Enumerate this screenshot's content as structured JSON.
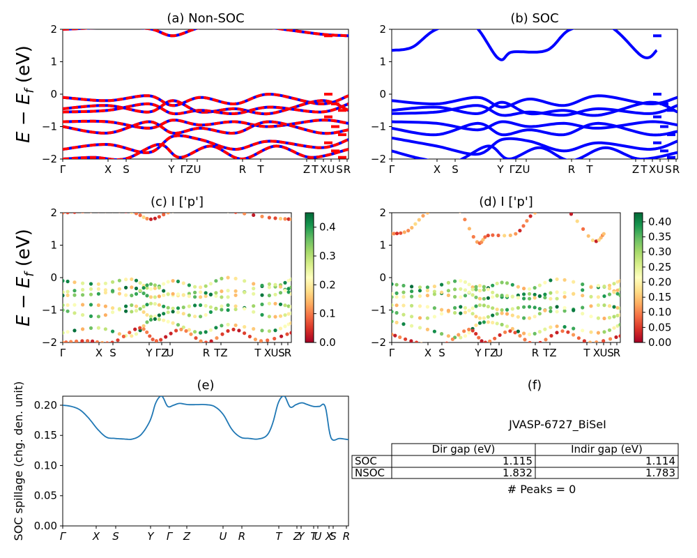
{
  "chart_data": [
    {
      "type": "line",
      "panel": "a",
      "title": "(a) Non-SOC",
      "ylabel": "E - E_f (eV)",
      "ylim": [
        -2,
        2
      ],
      "yticks": [
        "2",
        "1",
        "0",
        "−1",
        "−2"
      ],
      "xtick_labels": [
        "Γ",
        "X",
        "S",
        "Y",
        "ΓZ",
        "U",
        "R",
        "T",
        "Z",
        "T",
        "X",
        "U",
        "S",
        "R"
      ],
      "series_colors": [
        "#0000ff",
        "#ff0000"
      ],
      "style": "blue bands overlaid with red dashed bands",
      "bands": [
        {
          "name": "b1",
          "points": [
            [
              0,
              -0.1
            ],
            [
              1.3,
              -0.2
            ],
            [
              2.5,
              -0.05
            ],
            [
              3.2,
              -0.35
            ],
            [
              4.0,
              -0.1
            ],
            [
              5.0,
              -0.3
            ],
            [
              6.0,
              0.0
            ],
            [
              7.5,
              -0.3
            ],
            [
              8.3,
              -0.05
            ]
          ]
        },
        {
          "name": "b2",
          "points": [
            [
              0,
              -0.45
            ],
            [
              1.3,
              -0.35
            ],
            [
              2.5,
              -0.55
            ],
            [
              3.2,
              -0.2
            ],
            [
              4.0,
              -0.55
            ],
            [
              5.0,
              -0.45
            ],
            [
              6.0,
              -0.6
            ],
            [
              7.5,
              -0.2
            ],
            [
              8.3,
              -0.5
            ]
          ]
        },
        {
          "name": "b3",
          "points": [
            [
              0,
              -0.55
            ],
            [
              1.3,
              -0.5
            ],
            [
              2.5,
              -0.3
            ],
            [
              3.2,
              -0.6
            ],
            [
              4.0,
              -0.5
            ],
            [
              5.0,
              -0.6
            ],
            [
              6.0,
              -0.4
            ],
            [
              7.5,
              -0.55
            ],
            [
              8.3,
              -0.3
            ]
          ]
        },
        {
          "name": "b4",
          "points": [
            [
              0,
              -0.85
            ],
            [
              1.3,
              -0.85
            ],
            [
              2.5,
              -1.05
            ],
            [
              3.2,
              -0.8
            ],
            [
              4.0,
              -0.95
            ],
            [
              5.0,
              -0.85
            ],
            [
              6.0,
              -1.0
            ],
            [
              7.5,
              -0.8
            ],
            [
              8.3,
              -0.9
            ]
          ]
        },
        {
          "name": "b5",
          "points": [
            [
              0,
              -1.0
            ],
            [
              1.3,
              -1.2
            ],
            [
              2.5,
              -0.85
            ],
            [
              3.2,
              -1.2
            ],
            [
              4.0,
              -1.05
            ],
            [
              5.0,
              -1.2
            ],
            [
              6.0,
              -0.85
            ],
            [
              7.5,
              -1.2
            ],
            [
              8.3,
              -1.1
            ]
          ]
        },
        {
          "name": "b6",
          "points": [
            [
              0,
              -1.7
            ],
            [
              1.3,
              -1.55
            ],
            [
              2.5,
              -1.8
            ],
            [
              3.2,
              -1.3
            ],
            [
              4.0,
              -1.4
            ],
            [
              5.0,
              -1.7
            ],
            [
              6.0,
              -1.45
            ],
            [
              7.5,
              -1.65
            ],
            [
              8.3,
              -1.4
            ]
          ]
        },
        {
          "name": "b7",
          "points": [
            [
              0,
              -2.0
            ],
            [
              0.9,
              -1.95
            ],
            [
              1.8,
              -2.0
            ],
            [
              2.8,
              -1.55
            ],
            [
              3.4,
              -1.95
            ],
            [
              4.3,
              -1.6
            ],
            [
              5.2,
              -2.0
            ],
            [
              6.2,
              -1.6
            ],
            [
              7.2,
              -1.95
            ],
            [
              8.3,
              -1.7
            ]
          ]
        },
        {
          "name": "c1",
          "points": [
            [
              0,
              2.0
            ],
            [
              1.3,
              2.05
            ],
            [
              2.5,
              2.02
            ],
            [
              3.2,
              1.8
            ],
            [
              4.0,
              2.05
            ],
            [
              5.0,
              2.1
            ],
            [
              6.0,
              2.05
            ],
            [
              7.5,
              1.85
            ],
            [
              8.3,
              1.8
            ]
          ]
        }
      ]
    },
    {
      "type": "line",
      "panel": "b",
      "title": "(b) SOC",
      "ylim": [
        -2,
        2
      ],
      "yticks": [
        "2",
        "1",
        "0",
        "−1",
        "−2"
      ],
      "xtick_labels": [
        "Γ",
        "X",
        "S",
        "Y",
        "ΓZ",
        "U",
        "R",
        "T",
        "Z",
        "T",
        "X",
        "U",
        "S",
        "R"
      ],
      "series_colors": [
        "#0000ff"
      ],
      "bands": [
        {
          "name": "b1",
          "points": [
            [
              0,
              -0.2
            ],
            [
              1.3,
              -0.3
            ],
            [
              2.5,
              -0.1
            ],
            [
              3.2,
              -0.4
            ],
            [
              4.0,
              -0.15
            ],
            [
              5.0,
              -0.35
            ],
            [
              6.0,
              -0.05
            ],
            [
              7.5,
              -0.3
            ],
            [
              8.3,
              -0.1
            ]
          ]
        },
        {
          "name": "b2",
          "points": [
            [
              0,
              -0.5
            ],
            [
              1.3,
              -0.4
            ],
            [
              2.5,
              -0.6
            ],
            [
              3.2,
              -0.25
            ],
            [
              4.0,
              -0.6
            ],
            [
              5.0,
              -0.5
            ],
            [
              6.0,
              -0.65
            ],
            [
              7.5,
              -0.25
            ],
            [
              8.3,
              -0.55
            ]
          ]
        },
        {
          "name": "b3",
          "points": [
            [
              0,
              -0.6
            ],
            [
              1.3,
              -0.55
            ],
            [
              2.5,
              -0.35
            ],
            [
              3.2,
              -0.65
            ],
            [
              4.0,
              -0.55
            ],
            [
              5.0,
              -0.65
            ],
            [
              6.0,
              -0.45
            ],
            [
              7.5,
              -0.6
            ],
            [
              8.3,
              -0.35
            ]
          ]
        },
        {
          "name": "b4",
          "points": [
            [
              0,
              -0.85
            ],
            [
              1.3,
              -0.9
            ],
            [
              2.5,
              -1.1
            ],
            [
              3.2,
              -0.85
            ],
            [
              4.0,
              -1.0
            ],
            [
              5.0,
              -0.9
            ],
            [
              6.0,
              -1.05
            ],
            [
              7.5,
              -0.85
            ],
            [
              8.3,
              -0.95
            ]
          ]
        },
        {
          "name": "b5",
          "points": [
            [
              0,
              -1.05
            ],
            [
              1.3,
              -1.25
            ],
            [
              2.5,
              -0.9
            ],
            [
              3.2,
              -1.25
            ],
            [
              4.0,
              -1.1
            ],
            [
              5.0,
              -1.25
            ],
            [
              6.0,
              -0.9
            ],
            [
              7.5,
              -1.25
            ],
            [
              8.3,
              -1.15
            ]
          ]
        },
        {
          "name": "b6",
          "points": [
            [
              0,
              -1.35
            ],
            [
              1.3,
              -1.6
            ],
            [
              2.5,
              -1.85
            ],
            [
              3.2,
              -1.4
            ],
            [
              4.0,
              -1.45
            ],
            [
              5.0,
              -1.75
            ],
            [
              6.0,
              -1.5
            ],
            [
              7.5,
              -1.7
            ],
            [
              8.3,
              -1.45
            ]
          ]
        },
        {
          "name": "b7",
          "points": [
            [
              0,
              -1.75
            ],
            [
              0.9,
              -2.0
            ],
            [
              1.8,
              -2.1
            ],
            [
              2.8,
              -1.6
            ],
            [
              3.4,
              -2.0
            ],
            [
              4.3,
              -1.65
            ],
            [
              5.2,
              -2.05
            ],
            [
              6.2,
              -1.65
            ],
            [
              7.2,
              -2.0
            ],
            [
              8.3,
              -1.8
            ]
          ]
        },
        {
          "name": "c1",
          "points": [
            [
              0,
              1.35
            ],
            [
              0.6,
              1.45
            ],
            [
              1.3,
              2.0
            ],
            [
              2.3,
              2.2
            ],
            [
              3.1,
              1.1
            ],
            [
              3.5,
              1.3
            ],
            [
              4.5,
              1.35
            ],
            [
              5.2,
              2.0
            ],
            [
              6.3,
              2.1
            ],
            [
              7.3,
              1.15
            ],
            [
              7.7,
              1.35
            ]
          ]
        }
      ]
    },
    {
      "type": "scatter",
      "panel": "c",
      "title": "(c)  I ['p']",
      "ylabel": "E - E_f (eV)",
      "ylim": [
        -2,
        2
      ],
      "yticks": [
        "2",
        "1",
        "0",
        "−1",
        "−2"
      ],
      "xtick_labels": [
        "Γ",
        "X",
        "S",
        "Y",
        "ΓZ",
        "U",
        "R",
        "TZ",
        "T",
        "X",
        "U",
        "S",
        "R"
      ],
      "colormap": "RdYlGn",
      "colorbar_ticks": [
        "0.4",
        "0.3",
        "0.2",
        "0.1",
        "0.0"
      ],
      "colorbar_range": [
        0.0,
        0.45
      ]
    },
    {
      "type": "scatter",
      "panel": "d",
      "title": "(d) I ['p']",
      "ylim": [
        -2,
        2
      ],
      "yticks": [
        "2",
        "1",
        "0",
        "−1",
        "−2"
      ],
      "xtick_labels": [
        "Γ",
        "X",
        "S",
        "Y",
        "ΓZ",
        "U",
        "R",
        "TZ",
        "T",
        "X",
        "U",
        "S",
        "R"
      ],
      "colormap": "RdYlGn",
      "colorbar_ticks": [
        "0.40",
        "0.35",
        "0.30",
        "0.25",
        "0.20",
        "0.15",
        "0.10",
        "0.05",
        "0.00"
      ],
      "colorbar_range": [
        0.0,
        0.43
      ]
    },
    {
      "type": "line",
      "panel": "e",
      "title": "(e)",
      "ylabel": "SOC spillage (chg. den. unit)",
      "ylim": [
        0.0,
        0.215
      ],
      "yticks": [
        "0.20",
        "0.15",
        "0.10",
        "0.05",
        "0.00"
      ],
      "xtick_labels": [
        "Γ",
        "X",
        "S",
        "Y",
        "Γ",
        "Z",
        "U",
        "R",
        "T",
        "Z",
        "Y",
        "T",
        "U",
        "X",
        "S",
        "R"
      ],
      "line_color": "#1f77b4",
      "x": [
        0.0,
        0.3,
        0.6,
        0.9,
        1.2,
        1.5,
        1.8,
        2.1,
        2.4,
        2.7,
        3.0,
        3.2,
        3.4,
        3.6,
        3.8,
        4.0,
        4.3,
        4.6,
        4.9,
        5.2,
        5.5,
        5.8,
        6.1,
        6.4,
        6.7,
        7.0,
        7.2,
        7.4,
        7.6,
        7.8,
        8.0,
        8.2,
        8.4,
        8.6,
        8.8,
        9.0,
        9.2,
        9.5,
        9.8
      ],
      "y": [
        0.2,
        0.198,
        0.192,
        0.178,
        0.16,
        0.147,
        0.145,
        0.144,
        0.144,
        0.152,
        0.175,
        0.205,
        0.215,
        0.198,
        0.2,
        0.203,
        0.201,
        0.201,
        0.201,
        0.198,
        0.185,
        0.16,
        0.147,
        0.145,
        0.144,
        0.15,
        0.17,
        0.205,
        0.215,
        0.197,
        0.201,
        0.204,
        0.201,
        0.198,
        0.198,
        0.198,
        0.146,
        0.145,
        0.143
      ]
    }
  ],
  "panel_f": {
    "title": "(f)",
    "material": "JVASP-6727_BiSeI",
    "table": {
      "headers": [
        "",
        "Dir gap (eV)",
        "Indir gap (eV)"
      ],
      "rows": [
        {
          "label": "SOC",
          "dir": "1.115",
          "indir": "1.114"
        },
        {
          "label": "NSOC",
          "dir": "1.832",
          "indir": "1.783"
        }
      ]
    },
    "peaks": "# Peaks = 0"
  }
}
